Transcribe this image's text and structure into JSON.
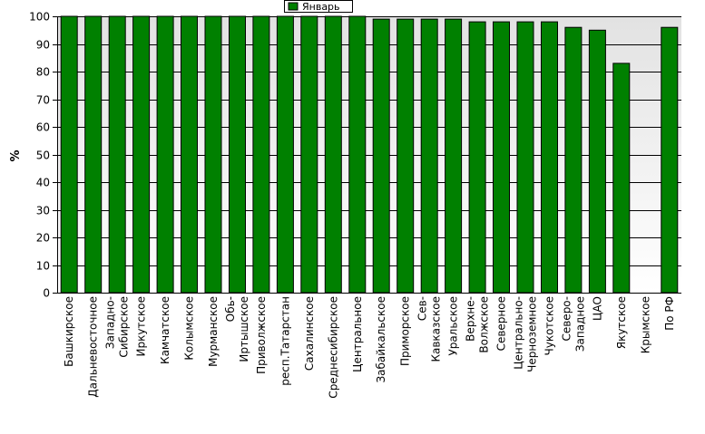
{
  "chart_data": {
    "type": "bar",
    "title": "",
    "xlabel": "",
    "ylabel": "%",
    "ylim": [
      0,
      100
    ],
    "yticks": [
      0,
      10,
      20,
      30,
      40,
      50,
      60,
      70,
      80,
      90,
      100
    ],
    "grid": true,
    "legend_position": "top-center",
    "colors": {
      "bar": "#008000",
      "bar_edge": "#000000",
      "plot_bg_top": "#e2e2e2",
      "plot_bg_bottom": "#ffffff",
      "grid": "#000000"
    },
    "categories": [
      [
        "Башкирское"
      ],
      [
        "Дальневосточное"
      ],
      [
        "Западно-",
        "Сибирское"
      ],
      [
        "Иркутское"
      ],
      [
        "Камчатское"
      ],
      [
        "Колымское"
      ],
      [
        "Мурманское"
      ],
      [
        "Обь-",
        "Иртышское"
      ],
      [
        "Приволжское"
      ],
      [
        "респ.Татарстан"
      ],
      [
        "Сахалинское"
      ],
      [
        "Среднесибирское"
      ],
      [
        "Центральное"
      ],
      [
        "Забайкальское"
      ],
      [
        "Приморское"
      ],
      [
        "Сев-",
        "Кавказское"
      ],
      [
        "Уральское"
      ],
      [
        "Верхне-",
        "Волжское"
      ],
      [
        "Северное"
      ],
      [
        "Центрально-",
        "Черноземное"
      ],
      [
        "Чукотское"
      ],
      [
        "Северо-",
        "Западное"
      ],
      [
        "ЦАО"
      ],
      [
        "Якутское"
      ],
      [
        "Крымское"
      ],
      [
        "По РФ"
      ]
    ],
    "series": [
      {
        "name": "Январь",
        "values": [
          100,
          100,
          100,
          100,
          100,
          100,
          100,
          100,
          100,
          100,
          100,
          100,
          100,
          99,
          99,
          99,
          99,
          98,
          98,
          98,
          98,
          96,
          95,
          83,
          null,
          96
        ]
      }
    ]
  }
}
